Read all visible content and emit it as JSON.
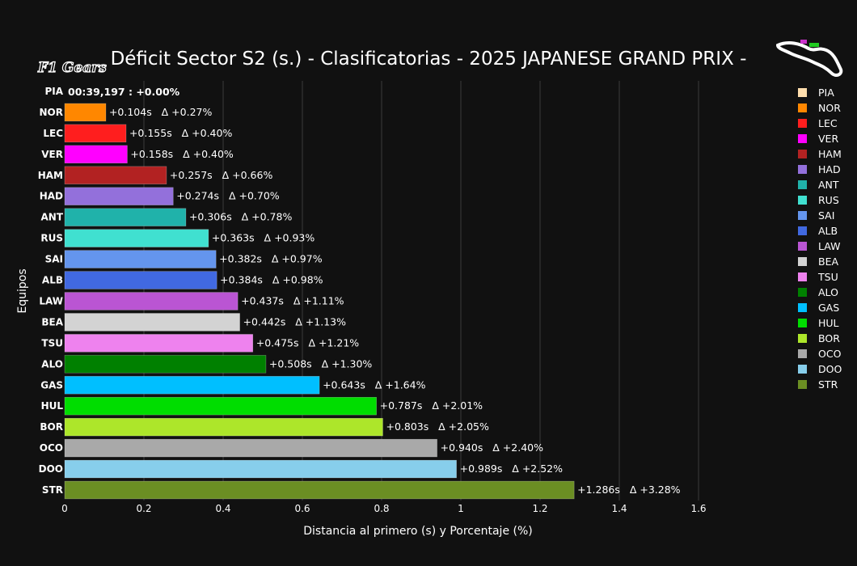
{
  "logo": {
    "text": "F1 Gears"
  },
  "chart_data": {
    "type": "bar",
    "orientation": "horizontal",
    "title": "Déficit Sector S2 (s.) - Clasificatorias - 2025 JAPANESE GRAND PRIX -",
    "xlabel": "Distancia al primero (s) y Porcentaje (%)",
    "ylabel": "Equipos",
    "xlim": [
      0,
      1.6
    ],
    "xticks": [
      "0",
      "0.2",
      "0.4",
      "0.6",
      "0.8",
      "1",
      "1.2",
      "1.4",
      "1.6"
    ],
    "grid": true,
    "legend_position": "right",
    "leader_label": "00:39,197 : +0.00%",
    "categories": [
      "PIA",
      "NOR",
      "LEC",
      "VER",
      "HAM",
      "HAD",
      "ANT",
      "RUS",
      "SAI",
      "ALB",
      "LAW",
      "BEA",
      "TSU",
      "ALO",
      "GAS",
      "HUL",
      "BOR",
      "OCO",
      "DOO",
      "STR"
    ],
    "values": [
      0,
      0.104,
      0.155,
      0.158,
      0.257,
      0.274,
      0.306,
      0.363,
      0.382,
      0.384,
      0.437,
      0.442,
      0.475,
      0.508,
      0.643,
      0.787,
      0.803,
      0.94,
      0.989,
      1.286
    ],
    "labels": [
      "",
      "+0.104s   Δ +0.27%",
      "+0.155s   Δ +0.40%",
      "+0.158s   Δ +0.40%",
      "+0.257s   Δ +0.66%",
      "+0.274s   Δ +0.70%",
      "+0.306s   Δ +0.78%",
      "+0.363s   Δ +0.93%",
      "+0.382s   Δ +0.97%",
      "+0.384s   Δ +0.98%",
      "+0.437s   Δ +1.11%",
      "+0.442s   Δ +1.13%",
      "+0.475s   Δ +1.21%",
      "+0.508s   Δ +1.30%",
      "+0.643s   Δ +1.64%",
      "+0.787s   Δ +2.01%",
      "+0.803s   Δ +2.05%",
      "+0.940s   Δ +2.40%",
      "+0.989s   Δ +2.52%",
      "+1.286s   Δ +3.28%"
    ],
    "colors": [
      "#FFDEAD",
      "#FF8700",
      "#FF1E1E",
      "#FF00FF",
      "#B22222",
      "#9370DB",
      "#20B2AA",
      "#40E0D0",
      "#6495ED",
      "#4169E1",
      "#BA55D3",
      "#D3D3D3",
      "#EE82EE",
      "#008000",
      "#00BFFF",
      "#00DD00",
      "#ADE62A",
      "#A9A9A9",
      "#87CEEB",
      "#6B8E23"
    ],
    "legend": [
      "PIA",
      "NOR",
      "LEC",
      "VER",
      "HAM",
      "HAD",
      "ANT",
      "RUS",
      "SAI",
      "ALB",
      "LAW",
      "BEA",
      "TSU",
      "ALO",
      "GAS",
      "HUL",
      "BOR",
      "OCO",
      "DOO",
      "STR"
    ]
  }
}
